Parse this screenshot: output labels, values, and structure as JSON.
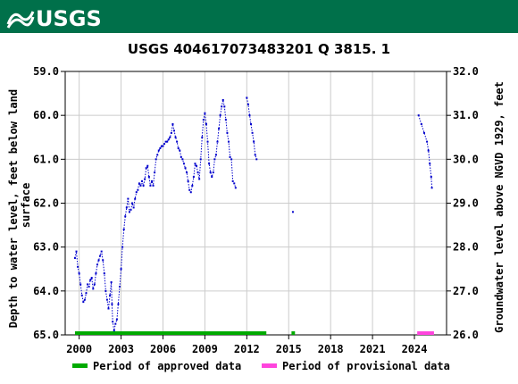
{
  "header": {
    "logo_text": "USGS",
    "brand_color": "#00704A"
  },
  "chart_data": {
    "type": "scatter",
    "title": "USGS 404617073483201 Q  3815. 1",
    "ylabel_left": "Depth to water level, feet below land surface",
    "ylabel_left_lines": [
      "Depth to water level, feet below land",
      "surface"
    ],
    "ylabel_right": "Groundwater level above NGVD 1929, feet",
    "xlim": [
      1999.0,
      2026.3
    ],
    "ylim_left": [
      65.0,
      59.0
    ],
    "ylim_right": [
      26.0,
      32.0
    ],
    "x_ticks": [
      2000,
      2003,
      2006,
      2009,
      2012,
      2015,
      2018,
      2021,
      2024
    ],
    "x_tick_labels": [
      "2000",
      "2003",
      "2006",
      "2009",
      "2012",
      "2015",
      "2018",
      "2021",
      "2024"
    ],
    "y_ticks_left": [
      59.0,
      60.0,
      61.0,
      62.0,
      63.0,
      64.0,
      65.0
    ],
    "y_tick_labels_left": [
      "59.0",
      "60.0",
      "61.0",
      "62.0",
      "63.0",
      "64.0",
      "65.0"
    ],
    "y_ticks_right": [
      26.0,
      27.0,
      28.0,
      29.0,
      30.0,
      31.0,
      32.0
    ],
    "y_tick_labels_right": [
      "26.0",
      "27.0",
      "28.0",
      "29.0",
      "30.0",
      "31.0",
      "32.0"
    ],
    "grid": true,
    "series_color": "#0000cc",
    "segments": [
      {
        "points": [
          [
            1999.7,
            63.25
          ],
          [
            1999.8,
            63.1
          ],
          [
            1999.9,
            63.45
          ],
          [
            2000.0,
            63.6
          ],
          [
            2000.1,
            63.85
          ],
          [
            2000.2,
            64.1
          ],
          [
            2000.3,
            64.25
          ],
          [
            2000.4,
            64.2
          ],
          [
            2000.5,
            64.05
          ],
          [
            2000.6,
            63.85
          ],
          [
            2000.7,
            63.9
          ],
          [
            2000.8,
            63.75
          ],
          [
            2000.9,
            63.7
          ],
          [
            2001.0,
            63.95
          ],
          [
            2001.1,
            63.85
          ],
          [
            2001.2,
            63.6
          ],
          [
            2001.3,
            63.4
          ],
          [
            2001.4,
            63.3
          ],
          [
            2001.5,
            63.2
          ],
          [
            2001.6,
            63.1
          ],
          [
            2001.7,
            63.3
          ],
          [
            2001.8,
            63.6
          ],
          [
            2001.9,
            64.0
          ],
          [
            2002.0,
            64.2
          ],
          [
            2002.1,
            64.4
          ],
          [
            2002.2,
            64.1
          ],
          [
            2002.3,
            63.8
          ],
          [
            2002.35,
            64.3
          ],
          [
            2002.4,
            64.7
          ],
          [
            2002.5,
            64.9
          ],
          [
            2002.6,
            64.75
          ],
          [
            2002.7,
            64.65
          ],
          [
            2002.8,
            64.3
          ],
          [
            2002.9,
            63.9
          ],
          [
            2003.0,
            63.5
          ],
          [
            2003.1,
            63.0
          ],
          [
            2003.2,
            62.6
          ],
          [
            2003.3,
            62.3
          ],
          [
            2003.4,
            62.1
          ],
          [
            2003.5,
            61.9
          ],
          [
            2003.6,
            62.2
          ],
          [
            2003.7,
            62.15
          ],
          [
            2003.8,
            62.0
          ],
          [
            2003.9,
            62.1
          ],
          [
            2004.0,
            61.9
          ],
          [
            2004.1,
            61.75
          ],
          [
            2004.2,
            61.7
          ],
          [
            2004.3,
            61.55
          ],
          [
            2004.4,
            61.6
          ],
          [
            2004.5,
            61.5
          ],
          [
            2004.6,
            61.6
          ],
          [
            2004.7,
            61.45
          ],
          [
            2004.8,
            61.2
          ],
          [
            2004.9,
            61.15
          ],
          [
            2005.0,
            61.4
          ],
          [
            2005.1,
            61.6
          ],
          [
            2005.2,
            61.5
          ],
          [
            2005.3,
            61.6
          ],
          [
            2005.4,
            61.3
          ],
          [
            2005.5,
            61.0
          ],
          [
            2005.6,
            60.9
          ],
          [
            2005.7,
            60.8
          ],
          [
            2005.8,
            60.75
          ],
          [
            2005.9,
            60.7
          ],
          [
            2006.0,
            60.7
          ],
          [
            2006.1,
            60.65
          ],
          [
            2006.2,
            60.6
          ],
          [
            2006.3,
            60.6
          ],
          [
            2006.4,
            60.55
          ],
          [
            2006.5,
            60.5
          ],
          [
            2006.6,
            60.4
          ],
          [
            2006.7,
            60.2
          ],
          [
            2006.8,
            60.35
          ],
          [
            2006.9,
            60.5
          ],
          [
            2007.0,
            60.6
          ],
          [
            2007.1,
            60.75
          ],
          [
            2007.2,
            60.8
          ],
          [
            2007.3,
            60.95
          ],
          [
            2007.4,
            61.0
          ],
          [
            2007.5,
            61.1
          ],
          [
            2007.6,
            61.2
          ],
          [
            2007.7,
            61.3
          ],
          [
            2007.8,
            61.5
          ],
          [
            2007.9,
            61.7
          ],
          [
            2008.0,
            61.75
          ],
          [
            2008.1,
            61.6
          ],
          [
            2008.2,
            61.4
          ],
          [
            2008.3,
            61.1
          ],
          [
            2008.4,
            61.15
          ],
          [
            2008.5,
            61.3
          ],
          [
            2008.6,
            61.45
          ],
          [
            2008.7,
            61.0
          ],
          [
            2008.8,
            60.5
          ],
          [
            2008.9,
            60.1
          ],
          [
            2009.0,
            59.95
          ],
          [
            2009.1,
            60.2
          ],
          [
            2009.2,
            60.6
          ],
          [
            2009.3,
            61.1
          ],
          [
            2009.4,
            61.3
          ],
          [
            2009.5,
            61.4
          ],
          [
            2009.6,
            61.3
          ],
          [
            2009.7,
            61.0
          ],
          [
            2009.8,
            60.9
          ],
          [
            2009.9,
            60.6
          ],
          [
            2010.0,
            60.3
          ],
          [
            2010.1,
            60.0
          ],
          [
            2010.2,
            59.8
          ],
          [
            2010.3,
            59.65
          ],
          [
            2010.4,
            59.8
          ],
          [
            2010.5,
            60.1
          ],
          [
            2010.6,
            60.4
          ],
          [
            2010.7,
            60.6
          ],
          [
            2010.8,
            60.95
          ],
          [
            2010.9,
            61.0
          ],
          [
            2011.0,
            61.5
          ],
          [
            2011.1,
            61.55
          ],
          [
            2011.2,
            61.65
          ]
        ]
      },
      {
        "points": [
          [
            2012.0,
            59.6
          ],
          [
            2012.1,
            59.75
          ],
          [
            2012.2,
            60.0
          ],
          [
            2012.3,
            60.2
          ],
          [
            2012.4,
            60.4
          ],
          [
            2012.5,
            60.6
          ],
          [
            2012.6,
            60.9
          ],
          [
            2012.7,
            61.0
          ]
        ]
      },
      {
        "points": [
          [
            2015.3,
            62.2
          ]
        ]
      },
      {
        "points": [
          [
            2024.3,
            60.0
          ],
          [
            2024.5,
            60.2
          ],
          [
            2024.7,
            60.4
          ],
          [
            2024.9,
            60.6
          ],
          [
            2025.0,
            60.8
          ],
          [
            2025.1,
            61.1
          ],
          [
            2025.2,
            61.4
          ],
          [
            2025.25,
            61.65
          ]
        ]
      }
    ],
    "approved_periods": [
      [
        1999.7,
        2013.4
      ],
      [
        2015.2,
        2015.45
      ]
    ],
    "provisional_periods": [
      [
        2024.2,
        2025.4
      ]
    ],
    "approved_color": "#00aa00",
    "provisional_color": "#ff44dd",
    "legend": {
      "approved_label": "Period of approved data",
      "provisional_label": "Period of provisional data"
    }
  }
}
